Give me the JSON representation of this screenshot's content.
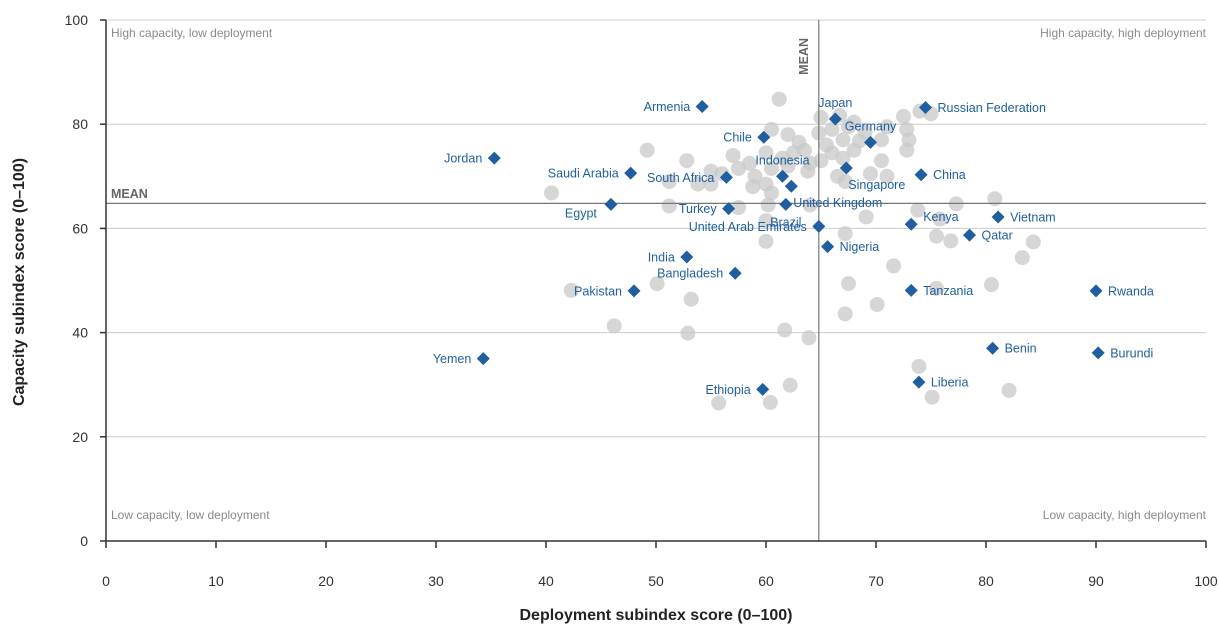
{
  "chart_data": {
    "type": "scatter",
    "xlabel": "Deployment subindex score (0–100)",
    "ylabel": "Capacity subindex score (0–100)",
    "xlim": [
      0,
      100
    ],
    "ylim": [
      0,
      100
    ],
    "x_ticks": [
      0,
      10,
      20,
      30,
      40,
      50,
      60,
      70,
      80,
      90,
      100
    ],
    "y_ticks": [
      0,
      20,
      40,
      60,
      80,
      100
    ],
    "grid": "horizontal",
    "mean": {
      "x": 64.8,
      "y": 64.8,
      "x_label": "MEAN",
      "y_label": "MEAN"
    },
    "quadrant_labels": {
      "top_left": "High capacity, low deployment",
      "top_right": "High capacity, high deployment",
      "bottom_left": "Low capacity, low deployment",
      "bottom_right": "Low capacity, high deployment"
    },
    "colors": {
      "highlight": "#1f5f9f",
      "other": "#c8c8c8",
      "axis": "#333333",
      "grid": "#cccccc",
      "mean_line": "#777777"
    },
    "highlighted": [
      {
        "name": "Armenia",
        "x": 54.2,
        "y": 83.4,
        "label_pos": "left"
      },
      {
        "name": "Japan",
        "x": 66.3,
        "y": 81.0,
        "label_pos": "top"
      },
      {
        "name": "Russian Federation",
        "x": 74.5,
        "y": 83.2,
        "label_pos": "right"
      },
      {
        "name": "Germany",
        "x": 69.5,
        "y": 76.5,
        "label_pos": "top"
      },
      {
        "name": "Chile",
        "x": 59.8,
        "y": 77.5,
        "label_pos": "left"
      },
      {
        "name": "Jordan",
        "x": 35.3,
        "y": 73.5,
        "label_pos": "left"
      },
      {
        "name": "Indonesia",
        "x": 61.5,
        "y": 70.0,
        "label_pos": "top"
      },
      {
        "name": "Singapore",
        "x": 67.3,
        "y": 71.6,
        "label_pos": "right-low"
      },
      {
        "name": "China",
        "x": 74.1,
        "y": 70.3,
        "label_pos": "right"
      },
      {
        "name": "Saudi Arabia",
        "x": 47.7,
        "y": 70.6,
        "label_pos": "left"
      },
      {
        "name": "South Africa",
        "x": 56.4,
        "y": 69.8,
        "label_pos": "left"
      },
      {
        "name": "United Kingdom",
        "x": 62.3,
        "y": 68.1,
        "label_pos": "right-low"
      },
      {
        "name": "Egypt",
        "x": 45.9,
        "y": 64.6,
        "label_pos": "left-low"
      },
      {
        "name": "Turkey",
        "x": 56.6,
        "y": 63.8,
        "label_pos": "left"
      },
      {
        "name": "Brazil",
        "x": 61.8,
        "y": 64.6,
        "label_pos": "bottom"
      },
      {
        "name": "Kenya",
        "x": 73.2,
        "y": 60.8,
        "label_pos": "right-high"
      },
      {
        "name": "Vietnam",
        "x": 81.1,
        "y": 62.2,
        "label_pos": "right"
      },
      {
        "name": "United Arab Emirates",
        "x": 64.8,
        "y": 60.4,
        "label_pos": "left"
      },
      {
        "name": "Qatar",
        "x": 78.5,
        "y": 58.7,
        "label_pos": "right"
      },
      {
        "name": "Nigeria",
        "x": 65.6,
        "y": 56.5,
        "label_pos": "right"
      },
      {
        "name": "India",
        "x": 52.8,
        "y": 54.5,
        "label_pos": "left"
      },
      {
        "name": "Bangladesh",
        "x": 57.2,
        "y": 51.4,
        "label_pos": "left"
      },
      {
        "name": "Pakistan",
        "x": 48.0,
        "y": 48.0,
        "label_pos": "left"
      },
      {
        "name": "Tanzania",
        "x": 73.2,
        "y": 48.1,
        "label_pos": "right"
      },
      {
        "name": "Rwanda",
        "x": 90.0,
        "y": 48.0,
        "label_pos": "right"
      },
      {
        "name": "Benin",
        "x": 80.6,
        "y": 37.0,
        "label_pos": "right"
      },
      {
        "name": "Burundi",
        "x": 90.2,
        "y": 36.1,
        "label_pos": "right"
      },
      {
        "name": "Yemen",
        "x": 34.3,
        "y": 35.0,
        "label_pos": "left"
      },
      {
        "name": "Liberia",
        "x": 73.9,
        "y": 30.5,
        "label_pos": "right"
      },
      {
        "name": "Ethiopia",
        "x": 59.7,
        "y": 29.1,
        "label_pos": "left"
      }
    ],
    "others": [
      [
        61.2,
        84.8
      ],
      [
        65.0,
        81.3
      ],
      [
        66.7,
        81.7
      ],
      [
        68.0,
        80.4
      ],
      [
        72.5,
        81.5
      ],
      [
        74.0,
        82.5
      ],
      [
        75.0,
        82.0
      ],
      [
        60.5,
        79.0
      ],
      [
        62.0,
        78.0
      ],
      [
        64.8,
        78.3
      ],
      [
        66.0,
        79.0
      ],
      [
        67.5,
        79.5
      ],
      [
        69.0,
        78.5
      ],
      [
        71.0,
        79.5
      ],
      [
        72.8,
        79.0
      ],
      [
        63.0,
        76.5
      ],
      [
        65.5,
        76.0
      ],
      [
        67.0,
        77.0
      ],
      [
        68.5,
        76.8
      ],
      [
        70.5,
        77.0
      ],
      [
        73.0,
        77.0
      ],
      [
        49.2,
        75.0
      ],
      [
        52.8,
        73.0
      ],
      [
        57.0,
        74.0
      ],
      [
        58.5,
        72.5
      ],
      [
        60.0,
        74.5
      ],
      [
        61.5,
        73.5
      ],
      [
        62.5,
        74.5
      ],
      [
        63.5,
        75.0
      ],
      [
        64.0,
        72.5
      ],
      [
        65.0,
        73.0
      ],
      [
        66.0,
        74.5
      ],
      [
        67.0,
        73.5
      ],
      [
        68.0,
        75.0
      ],
      [
        70.5,
        73.0
      ],
      [
        72.8,
        75.0
      ],
      [
        55.0,
        71.0
      ],
      [
        56.0,
        70.5
      ],
      [
        57.5,
        71.5
      ],
      [
        59.0,
        70.0
      ],
      [
        60.5,
        71.5
      ],
      [
        62.0,
        72.0
      ],
      [
        63.8,
        71.0
      ],
      [
        66.5,
        70.0
      ],
      [
        67.2,
        69.0
      ],
      [
        69.5,
        70.5
      ],
      [
        71.0,
        70.0
      ],
      [
        51.2,
        69.0
      ],
      [
        53.8,
        68.5
      ],
      [
        55.0,
        68.5
      ],
      [
        58.8,
        68.0
      ],
      [
        60.0,
        68.5
      ],
      [
        60.5,
        66.8
      ],
      [
        40.5,
        66.8
      ],
      [
        51.2,
        64.3
      ],
      [
        57.5,
        64.0
      ],
      [
        60.2,
        64.5
      ],
      [
        64.0,
        64.5
      ],
      [
        73.8,
        63.5
      ],
      [
        77.3,
        64.7
      ],
      [
        80.8,
        65.7
      ],
      [
        69.1,
        62.2
      ],
      [
        75.8,
        61.8
      ],
      [
        60.0,
        61.5
      ],
      [
        67.2,
        59.0
      ],
      [
        75.5,
        58.5
      ],
      [
        76.8,
        57.6
      ],
      [
        84.3,
        57.4
      ],
      [
        60.0,
        57.5
      ],
      [
        71.6,
        52.8
      ],
      [
        83.3,
        54.4
      ],
      [
        42.3,
        48.1
      ],
      [
        50.1,
        49.4
      ],
      [
        53.2,
        46.4
      ],
      [
        67.5,
        49.4
      ],
      [
        75.5,
        48.5
      ],
      [
        80.5,
        49.2
      ],
      [
        70.1,
        45.4
      ],
      [
        67.2,
        43.6
      ],
      [
        46.2,
        41.3
      ],
      [
        52.9,
        39.9
      ],
      [
        61.7,
        40.5
      ],
      [
        63.9,
        39.0
      ],
      [
        73.9,
        33.5
      ],
      [
        62.2,
        29.9
      ],
      [
        82.1,
        28.9
      ],
      [
        75.1,
        27.6
      ],
      [
        55.7,
        26.5
      ],
      [
        60.4,
        26.6
      ]
    ]
  }
}
